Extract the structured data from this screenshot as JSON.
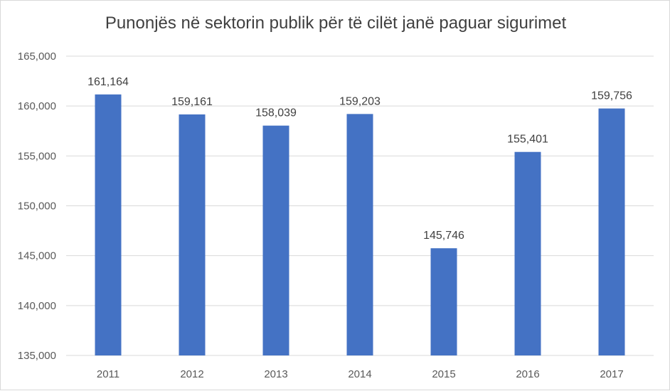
{
  "chart_data": {
    "type": "bar",
    "title": "Punonjës në sektorin publik për të cilët janë paguar sigurimet",
    "categories": [
      "2011",
      "2012",
      "2013",
      "2014",
      "2015",
      "2016",
      "2017"
    ],
    "values": [
      161164,
      159161,
      158039,
      159203,
      145746,
      155401,
      159756
    ],
    "data_labels": [
      "161,164",
      "159,161",
      "158,039",
      "159,203",
      "145,746",
      "155,401",
      "159,756"
    ],
    "ylim": [
      135000,
      165000
    ],
    "yticks": [
      135000,
      140000,
      145000,
      150000,
      155000,
      160000,
      165000
    ],
    "ytick_labels": [
      "135,000",
      "140,000",
      "145,000",
      "150,000",
      "155,000",
      "160,000",
      "165,000"
    ],
    "grid": true,
    "legend": "none",
    "colors": {
      "bar": "#4472c4",
      "grid": "#d9d9d9"
    }
  }
}
